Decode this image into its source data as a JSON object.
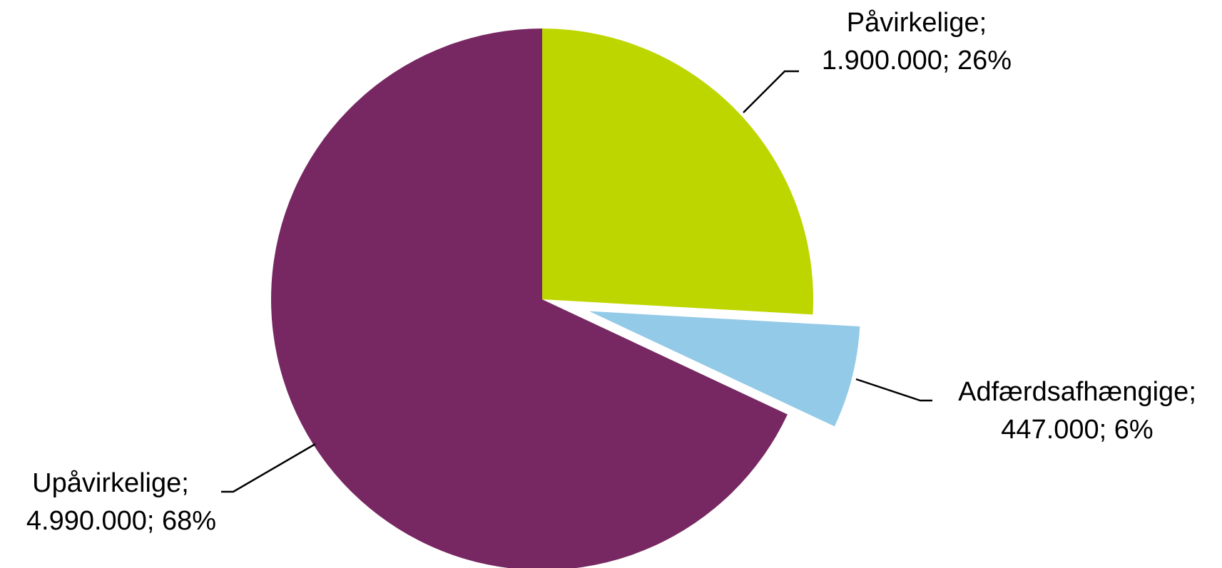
{
  "chart_data": {
    "type": "pie",
    "title": "",
    "slices": [
      {
        "name": "Påvirkelige",
        "value": 1900000,
        "value_text": "1.900.000",
        "percent_text": "26%",
        "color": "#BED600",
        "exploded": false
      },
      {
        "name": "Adfærdsafhængige",
        "value": 447000,
        "value_text": "447.000",
        "percent_text": "6%",
        "color": "#93CAE8",
        "exploded": true
      },
      {
        "name": "Upåvirkelige",
        "value": 4990000,
        "value_text": "4.990.000",
        "percent_text": "68%",
        "color": "#772862",
        "exploded": false
      }
    ],
    "start_angle": "12 o'clock",
    "direction": "clockwise",
    "legend": "none",
    "label_style": "name; value; percent with leader lines"
  }
}
